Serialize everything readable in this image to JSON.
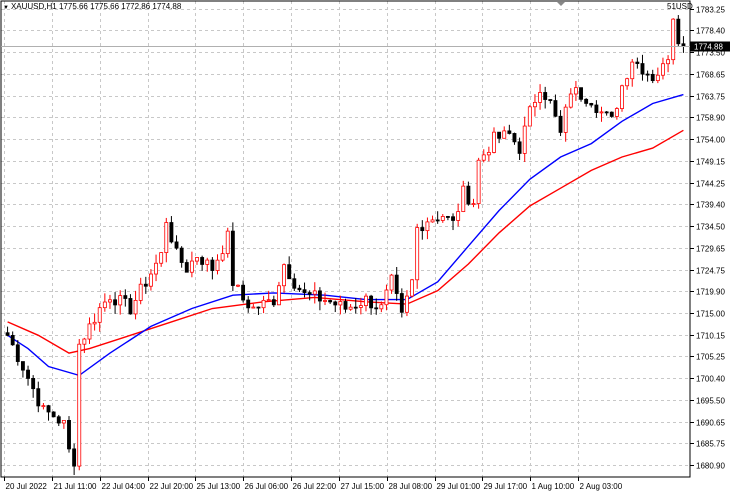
{
  "header": {
    "symbol_info": "XAUUSD,H1  1775.66 1775.66 1772.86 1774.88",
    "corner_label": "51USD"
  },
  "current_price_label": "1774.88",
  "colors": {
    "bull": "#ff0000",
    "bear": "#000000",
    "ma_fast": "#0000ff",
    "ma_slow": "#ff0000",
    "grid": "#c8c8c8"
  },
  "chart_data": {
    "type": "candlestick",
    "symbol": "XAUUSD",
    "timeframe": "H1",
    "ylim": [
      1678.2,
      1785.0
    ],
    "y_ticks": [
      1783.25,
      1778.4,
      1773.5,
      1768.65,
      1763.75,
      1758.9,
      1754.0,
      1749.15,
      1744.25,
      1739.4,
      1734.5,
      1729.65,
      1724.75,
      1719.9,
      1715.0,
      1710.15,
      1705.25,
      1700.4,
      1695.5,
      1690.65,
      1685.75,
      1680.9
    ],
    "x_ticks": [
      "20 Jul 2022",
      "21 Jul 11:00",
      "22 Jul 04:00",
      "22 Jul 20:00",
      "25 Jul 13:00",
      "26 Jul 06:00",
      "26 Jul 22:00",
      "27 Jul 15:00",
      "28 Jul 08:00",
      "29 Jul 01:00",
      "29 Jul 17:00",
      "1 Aug 10:00",
      "2 Aug 03:00"
    ],
    "current_price": 1774.88,
    "grid": true,
    "candle_count": 133,
    "trend_closes": [
      [
        0,
        1710
      ],
      [
        3,
        1703
      ],
      [
        5,
        1698
      ],
      [
        7,
        1693
      ],
      [
        9,
        1692
      ],
      [
        11,
        1690
      ],
      [
        12,
        1684
      ],
      [
        13,
        1682
      ],
      [
        14,
        1708
      ],
      [
        16,
        1712
      ],
      [
        18,
        1716
      ],
      [
        20,
        1719
      ],
      [
        24,
        1716
      ],
      [
        26,
        1720
      ],
      [
        30,
        1728
      ],
      [
        31,
        1736
      ],
      [
        33,
        1728
      ],
      [
        35,
        1725
      ],
      [
        37,
        1728
      ],
      [
        40,
        1725
      ],
      [
        43,
        1732
      ],
      [
        44,
        1722
      ],
      [
        46,
        1718
      ],
      [
        48,
        1716
      ],
      [
        52,
        1718
      ],
      [
        54,
        1726
      ],
      [
        56,
        1722
      ],
      [
        58,
        1719
      ],
      [
        62,
        1718
      ],
      [
        66,
        1716
      ],
      [
        70,
        1718
      ],
      [
        73,
        1716
      ],
      [
        75,
        1722
      ],
      [
        77,
        1714
      ],
      [
        79,
        1722
      ],
      [
        80,
        1734
      ],
      [
        82,
        1736
      ],
      [
        85,
        1737
      ],
      [
        87,
        1735
      ],
      [
        89,
        1742
      ],
      [
        91,
        1740
      ],
      [
        92,
        1749
      ],
      [
        95,
        1754
      ],
      [
        98,
        1755
      ],
      [
        100,
        1752
      ],
      [
        102,
        1760
      ],
      [
        104,
        1766
      ],
      [
        106,
        1762
      ],
      [
        108,
        1755
      ],
      [
        110,
        1765
      ],
      [
        112,
        1764
      ],
      [
        114,
        1763
      ],
      [
        116,
        1760
      ],
      [
        118,
        1758
      ],
      [
        120,
        1766
      ],
      [
        122,
        1772
      ],
      [
        124,
        1770
      ],
      [
        126,
        1768
      ],
      [
        128,
        1770
      ],
      [
        129,
        1773
      ],
      [
        130,
        1782
      ],
      [
        131,
        1777
      ],
      [
        132,
        1774.88
      ]
    ],
    "ma_fast_points": [
      [
        0,
        1710
      ],
      [
        4,
        1707
      ],
      [
        8,
        1703
      ],
      [
        14,
        1701
      ],
      [
        20,
        1706
      ],
      [
        28,
        1712
      ],
      [
        36,
        1716
      ],
      [
        44,
        1719
      ],
      [
        52,
        1719.5
      ],
      [
        62,
        1719
      ],
      [
        70,
        1718
      ],
      [
        78,
        1718
      ],
      [
        84,
        1722
      ],
      [
        90,
        1730
      ],
      [
        96,
        1738
      ],
      [
        102,
        1745
      ],
      [
        108,
        1750
      ],
      [
        114,
        1753
      ],
      [
        120,
        1758
      ],
      [
        126,
        1762
      ],
      [
        132,
        1764
      ]
    ],
    "ma_slow_points": [
      [
        0,
        1713
      ],
      [
        6,
        1710
      ],
      [
        12,
        1706
      ],
      [
        16,
        1707
      ],
      [
        24,
        1710
      ],
      [
        32,
        1713
      ],
      [
        40,
        1716
      ],
      [
        50,
        1717.5
      ],
      [
        60,
        1718.5
      ],
      [
        70,
        1717.5
      ],
      [
        78,
        1717
      ],
      [
        84,
        1720
      ],
      [
        90,
        1726
      ],
      [
        96,
        1733
      ],
      [
        102,
        1739
      ],
      [
        108,
        1743
      ],
      [
        114,
        1747
      ],
      [
        120,
        1750
      ],
      [
        126,
        1752
      ],
      [
        132,
        1756
      ]
    ]
  }
}
